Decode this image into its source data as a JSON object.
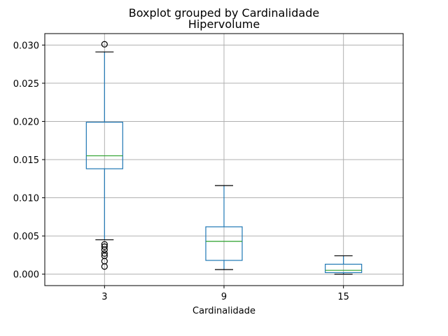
{
  "chart_data": {
    "type": "boxplot",
    "suptitle": "Boxplot grouped by Cardinalidade",
    "title": "Hipervolume",
    "xlabel": "Cardinalidade",
    "ylabel": "",
    "ylim": [
      -0.0015,
      0.0315
    ],
    "yticks": [
      0.0,
      0.005,
      0.01,
      0.015,
      0.02,
      0.025,
      0.03
    ],
    "ytick_labels": [
      "0.000",
      "0.005",
      "0.010",
      "0.015",
      "0.020",
      "0.025",
      "0.030"
    ],
    "grid": true,
    "colors": {
      "box": "#1f77b4",
      "median": "#2ca02c",
      "whisker_cap": "#000000",
      "grid": "#b0b0b0",
      "flier": "#000000"
    },
    "categories": [
      "3",
      "9",
      "15"
    ],
    "boxes": [
      {
        "category": "3",
        "whisker_low": 0.0045,
        "q1": 0.0138,
        "median": 0.0155,
        "q3": 0.0199,
        "whisker_high": 0.0291,
        "fliers": [
          0.0301,
          0.0039,
          0.0036,
          0.0032,
          0.0027,
          0.0024,
          0.0017,
          0.001
        ]
      },
      {
        "category": "9",
        "whisker_low": 0.0006,
        "q1": 0.0018,
        "median": 0.0043,
        "q3": 0.0062,
        "whisker_high": 0.0116,
        "fliers": []
      },
      {
        "category": "15",
        "whisker_low": 0.0,
        "q1": 0.0002,
        "median": 0.0005,
        "q3": 0.0013,
        "whisker_high": 0.0024,
        "fliers": []
      }
    ]
  }
}
